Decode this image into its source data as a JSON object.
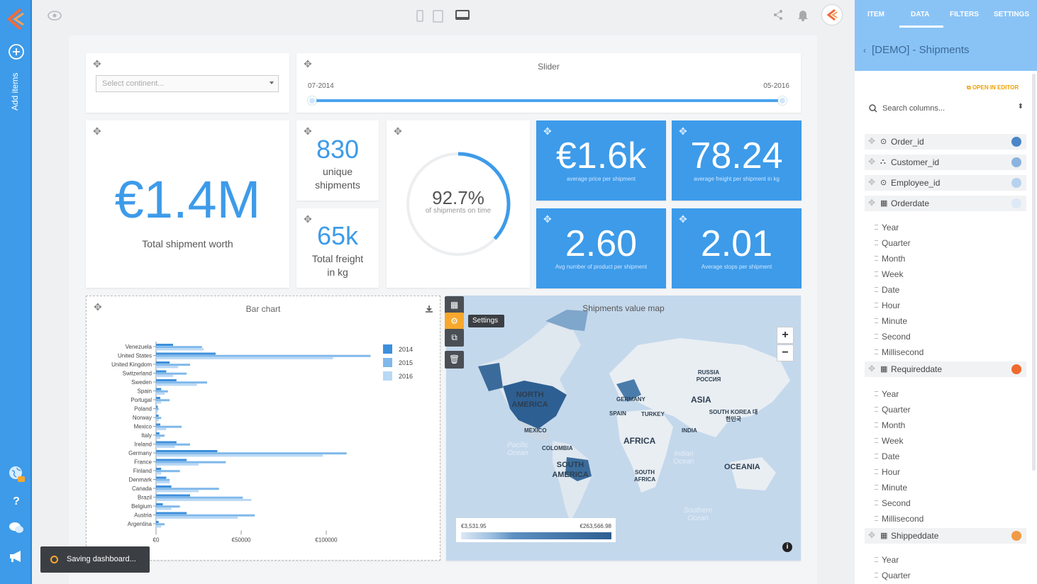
{
  "rail": {
    "add_items": "Add items"
  },
  "right_panel": {
    "tabs": [
      "ITEM",
      "DATA",
      "FILTERS",
      "SETTINGS"
    ],
    "datasource": "[DEMO] - Shipments",
    "open_in_editor": "OPEN IN EDITOR",
    "search_placeholder": "Search columns...",
    "columns": [
      {
        "name": "Order_id",
        "dot": "#4a86c8"
      },
      {
        "name": "Customer_id",
        "dot": "#8ab4de"
      },
      {
        "name": "Employee_id",
        "dot": "#b7d2ee"
      },
      {
        "name": "Orderdate",
        "dot": "#dde9f6"
      },
      {
        "name": "Requireddate",
        "dot": "#ee6a2d"
      },
      {
        "name": "Shippeddate",
        "dot": "#f09a45"
      }
    ],
    "orderdate_parts": [
      "Year",
      "Quarter",
      "Month",
      "Week",
      "Date",
      "Hour",
      "Minute",
      "Second",
      "Millisecond"
    ],
    "requireddate_parts": [
      "Year",
      "Quarter",
      "Month",
      "Week",
      "Date",
      "Hour",
      "Minute",
      "Second",
      "Millisecond"
    ],
    "shippeddate_parts": [
      "Year",
      "Quarter"
    ]
  },
  "filter": {
    "placeholder": "Select continent..."
  },
  "slider": {
    "title": "Slider",
    "start": "07-2014",
    "end": "05-2016"
  },
  "kpis": {
    "total_worth": {
      "value": "€1.4M",
      "label": "Total shipment worth"
    },
    "unique": {
      "value": "830",
      "label1": "unique",
      "label2": "shipments"
    },
    "freight": {
      "value": "65k",
      "label1": "Total freight",
      "label2": "in kg"
    },
    "ontime": {
      "value": "92.7%",
      "label": "of shipments on time",
      "fraction": 0.927
    },
    "avg_price": {
      "value": "€1.6k",
      "label": "average price per shipment"
    },
    "avg_freight": {
      "value": "78.24",
      "label": "average freight per shipment in kg"
    },
    "avg_products": {
      "value": "2.60",
      "label": "Avg number of product per shipment"
    },
    "avg_stops": {
      "value": "2.01",
      "label": "Average stops per shipment"
    }
  },
  "colors": {
    "accent": "#3d9be9",
    "s2014": "#3d8fdc",
    "s2015": "#7fb8ea",
    "s2016": "#b8d8f5"
  },
  "map": {
    "title": "Shipments value map",
    "legend_min": "€3,531.95",
    "legend_max": "€263,566.98",
    "labels": {
      "north_america": "NORTH AMERICA",
      "south_america": "SOUTH AMERICA",
      "africa": "AFRICA",
      "asia": "ASIA",
      "oceania": "OCEANIA",
      "russia": "RUSSIA РОССИЯ",
      "germany": "GERMANY",
      "spain": "SPAIN",
      "turkey": "TURKEY",
      "india": "INDIA",
      "south_korea": "SOUTH KOREA 대한민국",
      "mexico": "MEXICO",
      "colombia": "COLOMBIA",
      "south_africa": "SOUTH AFRICA",
      "pacific": "Pacific Ocean",
      "indian": "Indian Ocean",
      "southern": "Southern Ocean"
    }
  },
  "tooltip": "Settings",
  "toast": "Saving dashboard...",
  "chart_data": {
    "type": "bar",
    "title": "Bar chart",
    "orientation": "horizontal",
    "categories": [
      "Venezuela",
      "United States",
      "United Kingdom",
      "Switzerland",
      "Sweden",
      "Spain",
      "Portugal",
      "Poland",
      "Norway",
      "Mexico",
      "Italy",
      "Ireland",
      "Germany",
      "France",
      "Finland",
      "Denmark",
      "Canada",
      "Brazil",
      "Belgium",
      "Austria",
      "Argentina"
    ],
    "series": [
      {
        "name": "2014",
        "values": [
          10000,
          35000,
          8000,
          6000,
          12000,
          3000,
          2500,
          1000,
          1500,
          2500,
          2000,
          12000,
          36000,
          18000,
          3000,
          6000,
          9000,
          20000,
          4000,
          18000,
          1500
        ]
      },
      {
        "name": "2015",
        "values": [
          27000,
          126000,
          20000,
          18000,
          30000,
          7000,
          8000,
          1500,
          3000,
          15000,
          5000,
          20000,
          112000,
          41000,
          14000,
          8000,
          37000,
          51000,
          14000,
          58000,
          5000
        ]
      },
      {
        "name": "2016",
        "values": [
          28000,
          104000,
          13000,
          10000,
          24000,
          5000,
          3000,
          1000,
          1500,
          6000,
          2500,
          11000,
          98000,
          25000,
          3000,
          8000,
          25000,
          56000,
          9000,
          48000,
          3000
        ]
      }
    ],
    "xticks": [
      "€0",
      "€50000",
      "€100000"
    ],
    "xlim": [
      0,
      130000
    ],
    "legend": "top-right"
  }
}
